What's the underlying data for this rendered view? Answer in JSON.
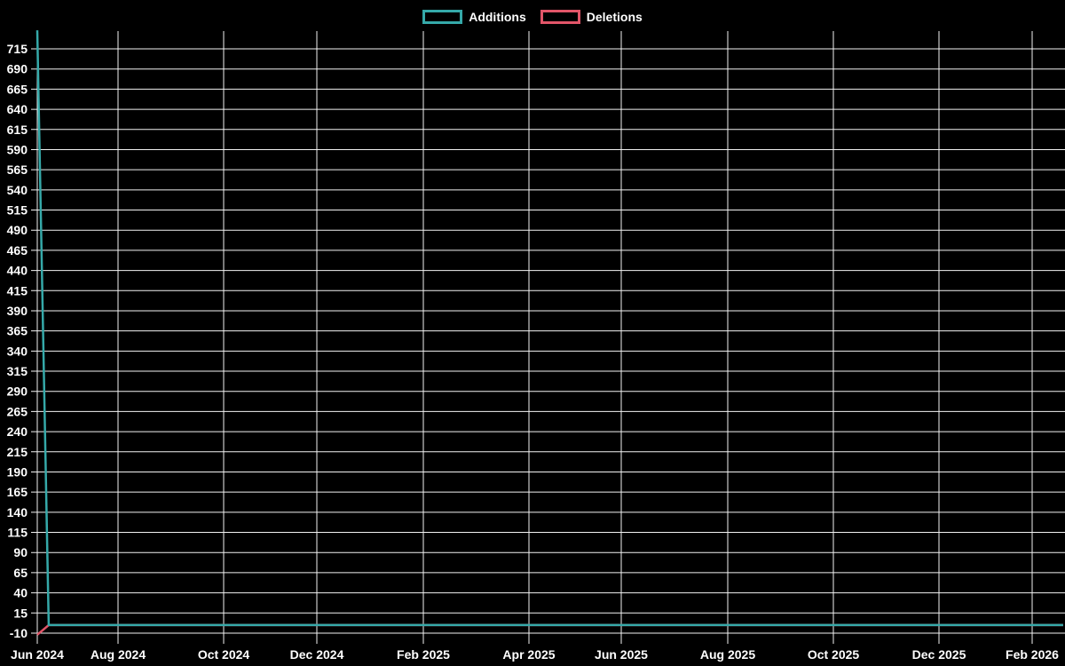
{
  "legend": {
    "items": [
      {
        "label": "Additions",
        "color": "#35a9a9"
      },
      {
        "label": "Deletions",
        "color": "#e25568"
      }
    ]
  },
  "chart_data": {
    "type": "line",
    "title": "",
    "background_color": "#000000",
    "grid_color": "#f2f2f2",
    "text_color": "#ffffff",
    "grid": true,
    "legend_position": "top-center",
    "x_axis": {
      "type": "time",
      "start_date": "2024-06-01",
      "end_date": "2026-02-20",
      "tick_labels": [
        "Jun 2024",
        "Aug 2024",
        "Oct 2024",
        "Dec 2024",
        "Feb 2025",
        "Apr 2025",
        "Jun 2025",
        "Aug 2025",
        "Oct 2025",
        "Dec 2025",
        "Feb 2026"
      ]
    },
    "y_axis": {
      "min": -20,
      "max": 740,
      "tick_step": 25,
      "ticks": [
        715,
        690,
        665,
        640,
        615,
        590,
        565,
        540,
        515,
        490,
        465,
        440,
        415,
        390,
        365,
        340,
        315,
        290,
        265,
        240,
        215,
        190,
        165,
        140,
        115,
        90,
        65,
        40,
        15,
        -10
      ]
    },
    "series": [
      {
        "name": "Additions",
        "color": "#35a9a9",
        "points": [
          [
            "2024-06-01",
            738
          ],
          [
            "2024-06-08",
            0
          ],
          [
            "2026-02-20",
            0
          ]
        ]
      },
      {
        "name": "Deletions",
        "color": "#e25568",
        "points": [
          [
            "2024-06-01",
            -12
          ],
          [
            "2024-06-08",
            0
          ],
          [
            "2026-02-20",
            0
          ]
        ]
      }
    ]
  }
}
